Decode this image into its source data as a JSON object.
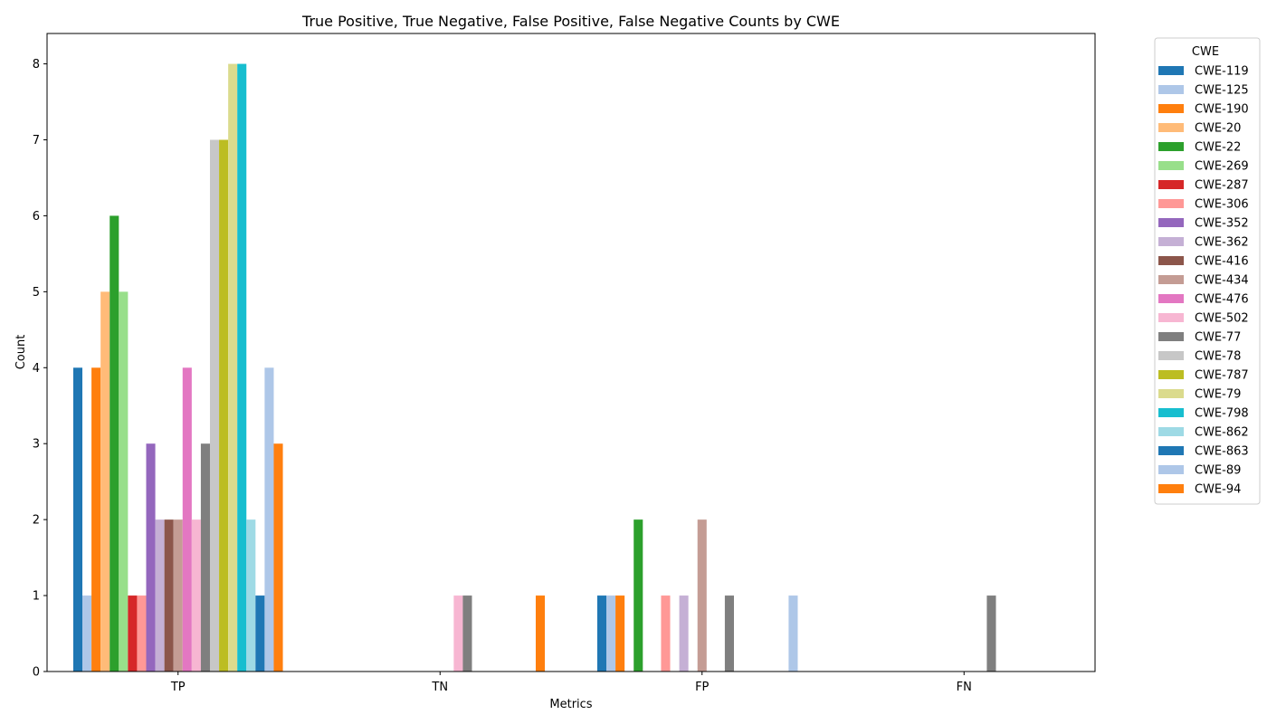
{
  "chart_data": {
    "type": "bar",
    "title": "True Positive, True Negative, False Positive, False Negative Counts by CWE",
    "xlabel": "Metrics",
    "ylabel": "Count",
    "categories": [
      "TP",
      "TN",
      "FP",
      "FN"
    ],
    "ylim": [
      0,
      8.4
    ],
    "yticks": [
      0,
      1,
      2,
      3,
      4,
      5,
      6,
      7,
      8
    ],
    "grid": false,
    "legend": {
      "title": "CWE",
      "placement": "outside-top-right"
    },
    "series": [
      {
        "name": "CWE-119",
        "color": "#1f77b4",
        "values": [
          4,
          0,
          1,
          0
        ]
      },
      {
        "name": "CWE-125",
        "color": "#aec7e8",
        "values": [
          1,
          0,
          1,
          0
        ]
      },
      {
        "name": "CWE-190",
        "color": "#ff7f0e",
        "values": [
          4,
          0,
          1,
          0
        ]
      },
      {
        "name": "CWE-20",
        "color": "#ffbb78",
        "values": [
          5,
          0,
          0,
          0
        ]
      },
      {
        "name": "CWE-22",
        "color": "#2ca02c",
        "values": [
          6,
          0,
          2,
          0
        ]
      },
      {
        "name": "CWE-269",
        "color": "#98df8a",
        "values": [
          5,
          0,
          0,
          0
        ]
      },
      {
        "name": "CWE-287",
        "color": "#d62728",
        "values": [
          1,
          0,
          0,
          0
        ]
      },
      {
        "name": "CWE-306",
        "color": "#ff9896",
        "values": [
          1,
          0,
          1,
          0
        ]
      },
      {
        "name": "CWE-352",
        "color": "#9467bd",
        "values": [
          3,
          0,
          0,
          0
        ]
      },
      {
        "name": "CWE-362",
        "color": "#c5b0d5",
        "values": [
          2,
          0,
          1,
          0
        ]
      },
      {
        "name": "CWE-416",
        "color": "#8c564b",
        "values": [
          2,
          0,
          0,
          0
        ]
      },
      {
        "name": "CWE-434",
        "color": "#c49c94",
        "values": [
          2,
          0,
          2,
          0
        ]
      },
      {
        "name": "CWE-476",
        "color": "#e377c2",
        "values": [
          4,
          0,
          0,
          0
        ]
      },
      {
        "name": "CWE-502",
        "color": "#f7b6d2",
        "values": [
          2,
          1,
          0,
          0
        ]
      },
      {
        "name": "CWE-77",
        "color": "#7f7f7f",
        "values": [
          3,
          1,
          1,
          1
        ]
      },
      {
        "name": "CWE-78",
        "color": "#c7c7c7",
        "values": [
          7,
          0,
          0,
          0
        ]
      },
      {
        "name": "CWE-787",
        "color": "#bcbd22",
        "values": [
          7,
          0,
          0,
          0
        ]
      },
      {
        "name": "CWE-79",
        "color": "#dbdb8d",
        "values": [
          8,
          0,
          0,
          0
        ]
      },
      {
        "name": "CWE-798",
        "color": "#17becf",
        "values": [
          8,
          0,
          0,
          0
        ]
      },
      {
        "name": "CWE-862",
        "color": "#9edae5",
        "values": [
          2,
          0,
          0,
          0
        ]
      },
      {
        "name": "CWE-863",
        "color": "#1f77b4",
        "values": [
          1,
          0,
          0,
          0
        ]
      },
      {
        "name": "CWE-89",
        "color": "#aec7e8",
        "values": [
          4,
          0,
          1,
          0
        ]
      },
      {
        "name": "CWE-94",
        "color": "#ff7f0e",
        "values": [
          3,
          1,
          0,
          0
        ]
      }
    ]
  }
}
